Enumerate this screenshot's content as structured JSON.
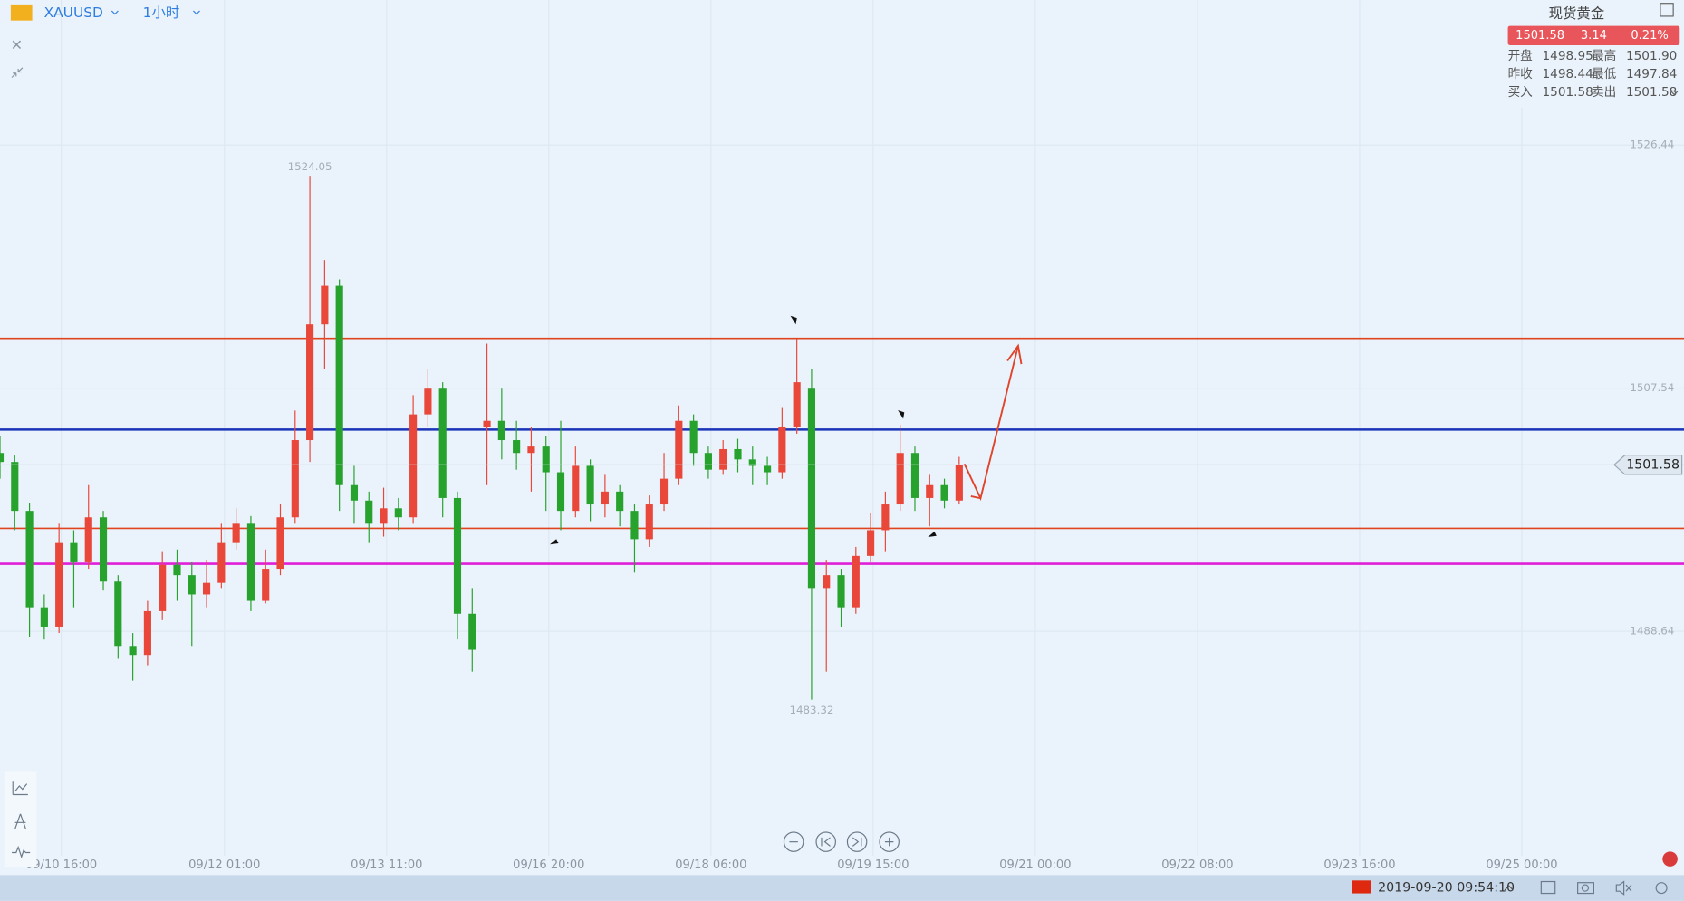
{
  "symbol": "XAUUSD",
  "interval": "1小时",
  "quote": {
    "name": "现货黄金",
    "price": 1501.58,
    "change": 3.14,
    "change_pct": "0.21%",
    "rows": [
      [
        {
          "label": "开盘",
          "value": "1498.95"
        },
        {
          "label": "最高",
          "value": "1501.90"
        }
      ],
      [
        {
          "label": "昨收",
          "value": "1498.44"
        },
        {
          "label": "最低",
          "value": "1497.84"
        }
      ],
      [
        {
          "label": "买入",
          "value": "1501.58"
        },
        {
          "label": "卖出",
          "value": "1501.58"
        }
      ]
    ]
  },
  "status_time": "2019-09-20 09:54:10",
  "chart_data": {
    "type": "candlestick",
    "x": [
      0,
      3,
      6,
      9,
      12,
      15,
      18,
      21,
      24,
      27,
      30,
      33,
      36,
      39,
      42,
      45,
      48,
      51,
      54,
      57,
      60,
      63,
      66,
      69,
      72,
      75,
      78,
      81,
      84,
      87,
      90,
      93,
      96,
      99,
      102,
      105,
      108,
      111,
      114,
      117,
      120,
      123,
      126,
      129,
      132,
      135,
      138,
      141,
      144,
      147,
      150,
      153,
      156,
      159,
      162,
      165,
      168,
      171,
      174,
      177,
      180,
      183,
      186,
      189,
      192,
      195
    ],
    "open": [
      1502.5,
      1501.8,
      1498.0,
      1490.5,
      1489.0,
      1495.5,
      1494.0,
      1497.5,
      1492.5,
      1487.5,
      1486.8,
      1490.2,
      1493.8,
      1493.0,
      1491.5,
      1492.4,
      1495.5,
      1497.0,
      1491.0,
      1493.5,
      1497.5,
      1503.5,
      1512.5,
      1515.5,
      1500.0,
      1498.8,
      1497.0,
      1498.2,
      1497.5,
      1505.5,
      1507.5,
      1499.0,
      1490.0,
      1504.5,
      1505.0,
      1503.5,
      1502.5,
      1503.0,
      1501.0,
      1498.0,
      1501.5,
      1498.5,
      1499.5,
      1498.0,
      1495.8,
      1498.5,
      1500.5,
      1505.0,
      1502.5,
      1501.2,
      1502.8,
      1502.0,
      1501.5,
      1501.0,
      1504.5,
      1507.5,
      1492.0,
      1493.0,
      1490.5,
      1494.5,
      1496.5,
      1498.5,
      1502.5,
      1499.0,
      1500.0,
      1498.8
    ],
    "high": [
      1503.8,
      1502.3,
      1498.6,
      1491.5,
      1497.0,
      1496.5,
      1500.0,
      1498.0,
      1493.0,
      1488.5,
      1491.0,
      1494.8,
      1495.0,
      1494.0,
      1494.2,
      1497.0,
      1498.2,
      1497.6,
      1495.0,
      1498.5,
      1505.8,
      1524.05,
      1517.5,
      1516.0,
      1501.5,
      1499.5,
      1499.8,
      1499.0,
      1507.0,
      1509.0,
      1508.0,
      1499.5,
      1492.0,
      1511.0,
      1507.5,
      1505.0,
      1504.5,
      1503.8,
      1505.0,
      1503.0,
      1502.0,
      1500.8,
      1500.0,
      1498.5,
      1499.2,
      1502.5,
      1506.2,
      1505.5,
      1503.0,
      1503.5,
      1503.6,
      1503.0,
      1502.2,
      1506.0,
      1511.4,
      1509.0,
      1494.2,
      1493.5,
      1495.2,
      1497.8,
      1499.5,
      1504.7,
      1503.0,
      1500.8,
      1500.5,
      1502.2
    ],
    "low": [
      1500.5,
      1496.5,
      1488.2,
      1488.0,
      1488.5,
      1490.5,
      1493.5,
      1491.8,
      1486.5,
      1484.8,
      1486.0,
      1489.5,
      1491.0,
      1487.5,
      1490.5,
      1492.0,
      1495.0,
      1490.2,
      1490.8,
      1493.0,
      1497.0,
      1501.8,
      1509.0,
      1498.0,
      1497.0,
      1495.5,
      1496.0,
      1496.5,
      1497.0,
      1504.5,
      1497.5,
      1488.0,
      1485.5,
      1500.0,
      1502.0,
      1501.2,
      1499.5,
      1498.0,
      1496.5,
      1497.5,
      1497.2,
      1497.5,
      1496.8,
      1493.2,
      1495.2,
      1498.0,
      1500.0,
      1501.5,
      1500.5,
      1500.8,
      1501.0,
      1500.0,
      1500.0,
      1500.5,
      1504.0,
      1483.32,
      1485.5,
      1489.0,
      1490.0,
      1494.0,
      1494.8,
      1498.0,
      1498.0,
      1496.8,
      1498.2,
      1498.5
    ],
    "close": [
      1501.8,
      1498.0,
      1490.5,
      1489.0,
      1495.5,
      1494.0,
      1497.5,
      1492.5,
      1487.5,
      1486.8,
      1490.2,
      1493.8,
      1493.0,
      1491.5,
      1492.4,
      1495.5,
      1497.0,
      1491.0,
      1493.5,
      1497.5,
      1503.5,
      1512.5,
      1515.5,
      1500.0,
      1498.8,
      1497.0,
      1498.2,
      1497.5,
      1505.5,
      1507.5,
      1499.0,
      1490.0,
      1487.2,
      1505.0,
      1503.5,
      1502.5,
      1503.0,
      1501.0,
      1498.0,
      1501.5,
      1498.5,
      1499.5,
      1498.0,
      1495.8,
      1498.5,
      1500.5,
      1505.0,
      1502.5,
      1501.2,
      1502.8,
      1502.0,
      1501.5,
      1501.0,
      1504.5,
      1508.0,
      1492.0,
      1493.0,
      1490.5,
      1494.5,
      1496.5,
      1498.5,
      1502.5,
      1499.0,
      1500.0,
      1498.8,
      1501.58
    ],
    "up_color": "#e8473a",
    "down_color": "#27a22d",
    "max_label_index": 21,
    "min_label_index": 55,
    "levels": [
      {
        "value": 1511.41,
        "color": "#e0441f"
      },
      {
        "value": 1504.32,
        "color": "#1a35b8"
      },
      {
        "value": 1496.64,
        "color": "#e0441f"
      },
      {
        "value": 1493.89,
        "color": "#e020d8"
      }
    ],
    "xlim": [
      0,
      342.36
    ],
    "ylim": [
      1471.18,
      1537.71
    ],
    "xticks": [
      {
        "value": 12.45,
        "label": "09/10 16:00"
      },
      {
        "value": 45.63,
        "label": "09/12 01:00"
      },
      {
        "value": 78.6,
        "label": "09/13 11:00"
      },
      {
        "value": 111.57,
        "label": "09/16 20:00"
      },
      {
        "value": 144.54,
        "label": "09/18 06:00"
      },
      {
        "value": 177.51,
        "label": "09/19 15:00"
      },
      {
        "value": 210.48,
        "label": "09/21 00:00"
      },
      {
        "value": 243.45,
        "label": "09/22 08:00"
      },
      {
        "value": 276.42,
        "label": "09/23 16:00"
      },
      {
        "value": 309.39,
        "label": "09/25 00:00"
      }
    ],
    "yticks": [
      1526.44,
      1507.54,
      1488.64
    ],
    "grid": true
  }
}
